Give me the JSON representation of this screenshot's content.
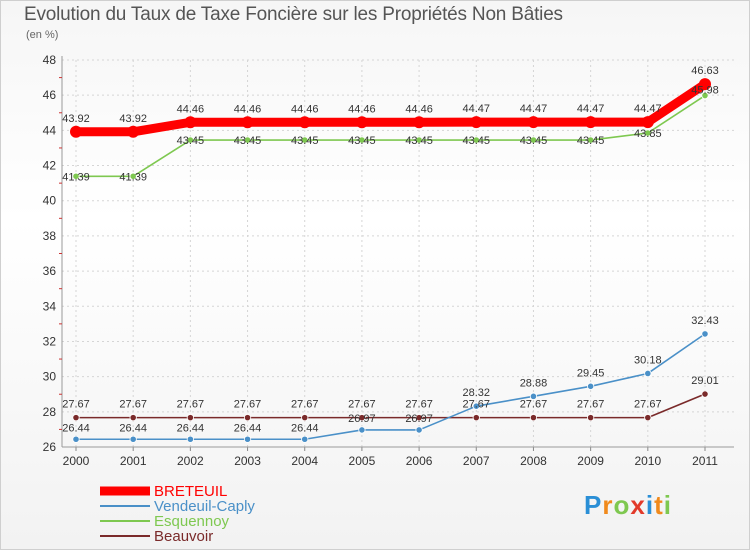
{
  "chart_data": {
    "type": "line",
    "title": "Evolution du Taux de Taxe Foncière sur les Propriétés Non Bâties",
    "ylabel": "(en %)",
    "x": [
      "2000",
      "2001",
      "2002",
      "2003",
      "2004",
      "2005",
      "2006",
      "2007",
      "2008",
      "2009",
      "2010",
      "2011"
    ],
    "ylim": [
      26,
      48
    ],
    "yticks": [
      26,
      28,
      30,
      32,
      34,
      36,
      38,
      40,
      42,
      44,
      46,
      48
    ],
    "series": [
      {
        "name": "BRETEUIL",
        "color": "#ff0000",
        "values": [
          43.92,
          43.92,
          44.46,
          44.46,
          44.46,
          44.46,
          44.46,
          44.47,
          44.47,
          44.47,
          44.47,
          46.63
        ],
        "labels": [
          "43.92",
          "43.92",
          "44.46",
          "44.46",
          "44.46",
          "44.46",
          "44.46",
          "44.47",
          "44.47",
          "44.47",
          "44.47",
          "46.63"
        ]
      },
      {
        "name": "Vendeuil-Caply",
        "color": "#4a90c8",
        "values": [
          26.44,
          26.44,
          26.44,
          26.44,
          26.44,
          26.97,
          26.97,
          28.32,
          28.88,
          29.45,
          30.18,
          32.43
        ],
        "labels": [
          "26.44",
          "26.44",
          "26.44",
          "26.44",
          "26.44",
          "26.97",
          "26.97",
          "28.32",
          "28.88",
          "29.45",
          "30.18",
          "32.43"
        ]
      },
      {
        "name": "Esquennoy",
        "color": "#7ec850",
        "values": [
          41.39,
          41.39,
          43.45,
          43.45,
          43.45,
          43.45,
          43.45,
          43.45,
          43.45,
          43.45,
          43.85,
          45.98
        ],
        "labels": [
          "41.39",
          "41.39",
          "43.45",
          "43.45",
          "43.45",
          "43.45",
          "43.45",
          "43.45",
          "43.45",
          "43.45",
          "43.85",
          "45.98"
        ]
      },
      {
        "name": "Beauvoir",
        "color": "#7a2a2a",
        "values": [
          27.67,
          27.67,
          27.67,
          27.67,
          27.67,
          27.67,
          27.67,
          27.67,
          27.67,
          27.67,
          27.67,
          29.01
        ],
        "labels": [
          "27.67",
          "27.67",
          "27.67",
          "27.67",
          "27.67",
          "27.67",
          "27.67",
          "27.67",
          "27.67",
          "27.67",
          "27.67",
          "29.01"
        ]
      }
    ]
  },
  "brand": {
    "letters": [
      "P",
      "r",
      "o",
      "x",
      "i",
      "t",
      "i"
    ],
    "colors": [
      "#2a8fd6",
      "#f08a1c",
      "#7ec850",
      "#e23a2a",
      "#2a8fd6",
      "#f08a1c",
      "#7ec850"
    ]
  }
}
